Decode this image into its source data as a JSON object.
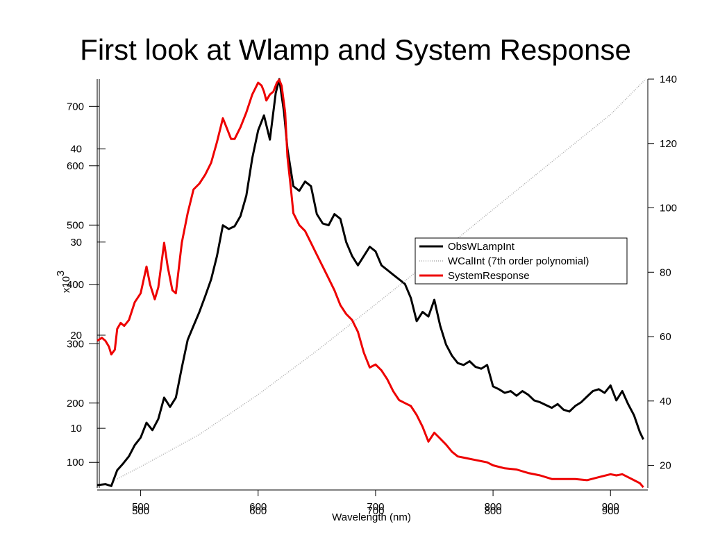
{
  "title": "First look at Wlamp and System Response",
  "chart_data": {
    "type": "line",
    "xlabel": "Wavelength (nm)",
    "xlim": [
      463,
      930
    ],
    "x_ticks": [
      500,
      600,
      700,
      800,
      900
    ],
    "x_ticks_secondary": [
      500,
      600,
      700,
      800,
      900
    ],
    "left_axis_outer": {
      "label": "x10",
      "label_exponent": "3",
      "ticks": [
        10,
        20,
        30,
        40
      ],
      "ylim": [
        3.6,
        47.5
      ]
    },
    "left_axis_inner": {
      "ticks": [
        100,
        200,
        300,
        400,
        500,
        600,
        700
      ],
      "ylim": [
        57,
        746
      ]
    },
    "right_axis": {
      "ticks": [
        20,
        40,
        60,
        80,
        100,
        120,
        140
      ],
      "ylim": [
        13,
        140
      ]
    },
    "legend_position": "right",
    "series": [
      {
        "name": "ObsWLampInt",
        "color": "#000000",
        "style": "solid",
        "axis": "left_outer",
        "x": [
          463,
          470,
          475,
          480,
          485,
          490,
          495,
          500,
          505,
          510,
          515,
          520,
          525,
          530,
          535,
          540,
          545,
          550,
          555,
          560,
          565,
          570,
          575,
          580,
          585,
          590,
          595,
          600,
          605,
          610,
          615,
          618,
          622,
          625,
          630,
          635,
          640,
          645,
          650,
          655,
          660,
          665,
          670,
          675,
          680,
          685,
          690,
          695,
          700,
          705,
          710,
          715,
          720,
          725,
          730,
          735,
          740,
          745,
          750,
          755,
          760,
          765,
          770,
          775,
          780,
          785,
          790,
          795,
          800,
          805,
          810,
          815,
          820,
          825,
          830,
          835,
          840,
          845,
          850,
          855,
          860,
          865,
          870,
          875,
          880,
          885,
          890,
          895,
          900,
          905,
          910,
          915,
          920,
          925,
          928
        ],
        "y": [
          3.9,
          4.0,
          3.8,
          5.5,
          6.2,
          7.0,
          8.2,
          9.0,
          10.6,
          9.8,
          11.0,
          13.3,
          12.3,
          13.3,
          16.5,
          19.5,
          21.0,
          22.5,
          24.2,
          26.0,
          28.5,
          31.8,
          31.4,
          31.7,
          32.8,
          35.0,
          39.0,
          42.0,
          43.6,
          41.0,
          46.0,
          47.5,
          44.0,
          40.0,
          36.0,
          35.5,
          36.5,
          36.0,
          33.0,
          32.0,
          31.8,
          33.0,
          32.5,
          30.0,
          28.5,
          27.5,
          28.5,
          29.5,
          29.0,
          27.5,
          27.0,
          26.5,
          26.0,
          25.5,
          24.0,
          21.5,
          22.5,
          22.0,
          23.8,
          21.0,
          19.0,
          17.8,
          17.0,
          16.8,
          17.2,
          16.6,
          16.4,
          16.8,
          14.5,
          14.2,
          13.8,
          14.0,
          13.5,
          14.0,
          13.6,
          13.0,
          12.8,
          12.5,
          12.2,
          12.6,
          12.0,
          11.8,
          12.4,
          12.8,
          13.4,
          14.0,
          14.2,
          13.8,
          14.6,
          13.0,
          14.0,
          12.6,
          11.4,
          9.6,
          8.8
        ]
      },
      {
        "name": "WCalInt (7th order polynomial)",
        "color": "#aaaaaa",
        "style": "dotted",
        "axis": "right",
        "x": [
          480,
          500,
          550,
          600,
          650,
          700,
          750,
          800,
          850,
          900,
          930
        ],
        "y": [
          15.8,
          19.6,
          29.6,
          42.0,
          55.6,
          70.0,
          84.6,
          99.5,
          114.3,
          129.0,
          140.0
        ]
      },
      {
        "name": "SystemResponse",
        "color": "#ee0000",
        "style": "solid",
        "axis": "left_inner",
        "x": [
          463,
          467,
          470,
          473,
          475,
          478,
          480,
          483,
          486,
          490,
          495,
          500,
          505,
          508,
          512,
          515,
          520,
          523,
          527,
          530,
          535,
          540,
          545,
          550,
          555,
          560,
          565,
          570,
          573,
          577,
          580,
          585,
          590,
          595,
          600,
          603,
          605,
          607,
          610,
          613,
          616,
          618,
          620,
          623,
          625,
          628,
          630,
          635,
          640,
          645,
          650,
          655,
          660,
          665,
          670,
          675,
          680,
          685,
          690,
          695,
          700,
          705,
          710,
          715,
          720,
          725,
          730,
          735,
          740,
          745,
          750,
          755,
          760,
          765,
          770,
          775,
          780,
          785,
          790,
          795,
          800,
          810,
          820,
          830,
          840,
          850,
          860,
          870,
          880,
          890,
          900,
          905,
          910,
          915,
          920,
          925,
          928
        ],
        "y": [
          305,
          310,
          305,
          295,
          282,
          290,
          325,
          335,
          330,
          340,
          370,
          385,
          430,
          400,
          375,
          395,
          470,
          430,
          390,
          385,
          470,
          520,
          560,
          570,
          585,
          605,
          640,
          680,
          665,
          645,
          645,
          665,
          690,
          720,
          740,
          735,
          725,
          710,
          720,
          725,
          740,
          745,
          735,
          690,
          615,
          560,
          520,
          500,
          490,
          470,
          450,
          430,
          410,
          390,
          365,
          350,
          340,
          320,
          285,
          260,
          265,
          255,
          240,
          220,
          205,
          200,
          195,
          180,
          160,
          135,
          150,
          140,
          130,
          118,
          110,
          108,
          106,
          104,
          102,
          100,
          95,
          90,
          88,
          82,
          78,
          72,
          72,
          72,
          70,
          75,
          80,
          78,
          80,
          75,
          70,
          65,
          58
        ]
      }
    ]
  }
}
